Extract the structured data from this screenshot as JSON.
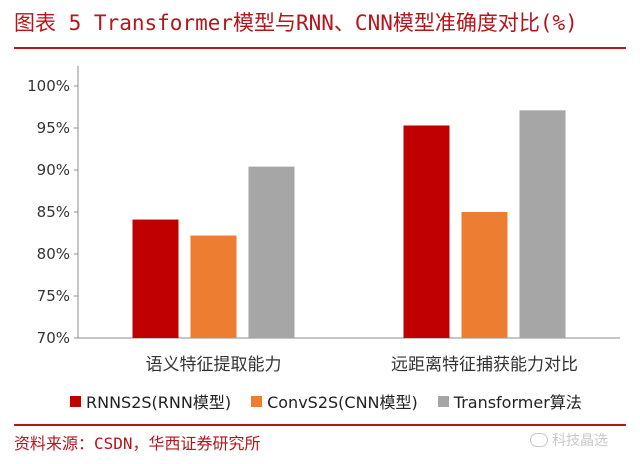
{
  "header": {
    "title": "图表 5 Transformer模型与RNN、CNN模型准确度对比(%)"
  },
  "chart_data": {
    "type": "bar",
    "categories": [
      "语义特征提取能力",
      "远距离特征捕获能力对比"
    ],
    "series": [
      {
        "name": "RNNS2S(RNN模型)",
        "color": "#c00000",
        "values": [
          84.1,
          95.3
        ]
      },
      {
        "name": "ConvS2S(CNN模型)",
        "color": "#ed7d31",
        "values": [
          82.2,
          85.0
        ]
      },
      {
        "name": "Transformer算法",
        "color": "#a6a6a6",
        "values": [
          90.4,
          97.1
        ]
      }
    ],
    "yticks": [
      "70%",
      "75%",
      "80%",
      "85%",
      "90%",
      "95%",
      "100%"
    ],
    "ylim": [
      70,
      100
    ],
    "grid": false,
    "legend_position": "bottom"
  },
  "footer": {
    "source": "资料来源：CSDN，华西证券研究所",
    "watermark": "科技晶选"
  }
}
